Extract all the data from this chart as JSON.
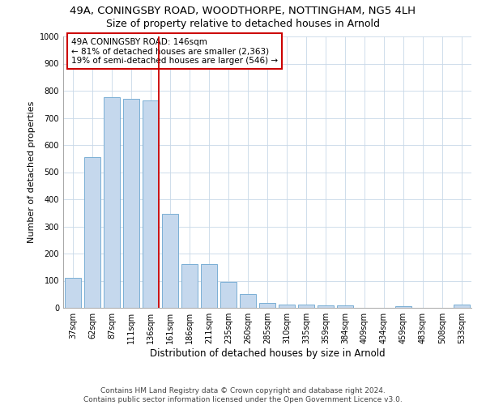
{
  "title_line1": "49A, CONINGSBY ROAD, WOODTHORPE, NOTTINGHAM, NG5 4LH",
  "title_line2": "Size of property relative to detached houses in Arnold",
  "xlabel": "Distribution of detached houses by size in Arnold",
  "ylabel": "Number of detached properties",
  "categories": [
    "37sqm",
    "62sqm",
    "87sqm",
    "111sqm",
    "136sqm",
    "161sqm",
    "186sqm",
    "211sqm",
    "235sqm",
    "260sqm",
    "285sqm",
    "310sqm",
    "335sqm",
    "359sqm",
    "384sqm",
    "409sqm",
    "434sqm",
    "459sqm",
    "483sqm",
    "508sqm",
    "533sqm"
  ],
  "values": [
    110,
    555,
    775,
    770,
    765,
    345,
    160,
    160,
    95,
    50,
    18,
    13,
    12,
    10,
    8,
    0,
    0,
    5,
    0,
    0,
    12
  ],
  "bar_color": "#c5d8ed",
  "bar_edge_color": "#7aafd4",
  "vline_color": "#cc0000",
  "vline_x_index": 4,
  "annotation_text": "49A CONINGSBY ROAD: 146sqm\n← 81% of detached houses are smaller (2,363)\n19% of semi-detached houses are larger (546) →",
  "annotation_box_color": "#ffffff",
  "annotation_box_edge_color": "#cc0000",
  "ylim": [
    0,
    1000
  ],
  "yticks": [
    0,
    100,
    200,
    300,
    400,
    500,
    600,
    700,
    800,
    900,
    1000
  ],
  "footer_line1": "Contains HM Land Registry data © Crown copyright and database right 2024.",
  "footer_line2": "Contains public sector information licensed under the Open Government Licence v3.0.",
  "bg_color": "#ffffff",
  "grid_color": "#c8d8e8",
  "title1_fontsize": 9.5,
  "title2_fontsize": 9,
  "xlabel_fontsize": 8.5,
  "ylabel_fontsize": 8,
  "tick_fontsize": 7,
  "annotation_fontsize": 7.5,
  "footer_fontsize": 6.5
}
